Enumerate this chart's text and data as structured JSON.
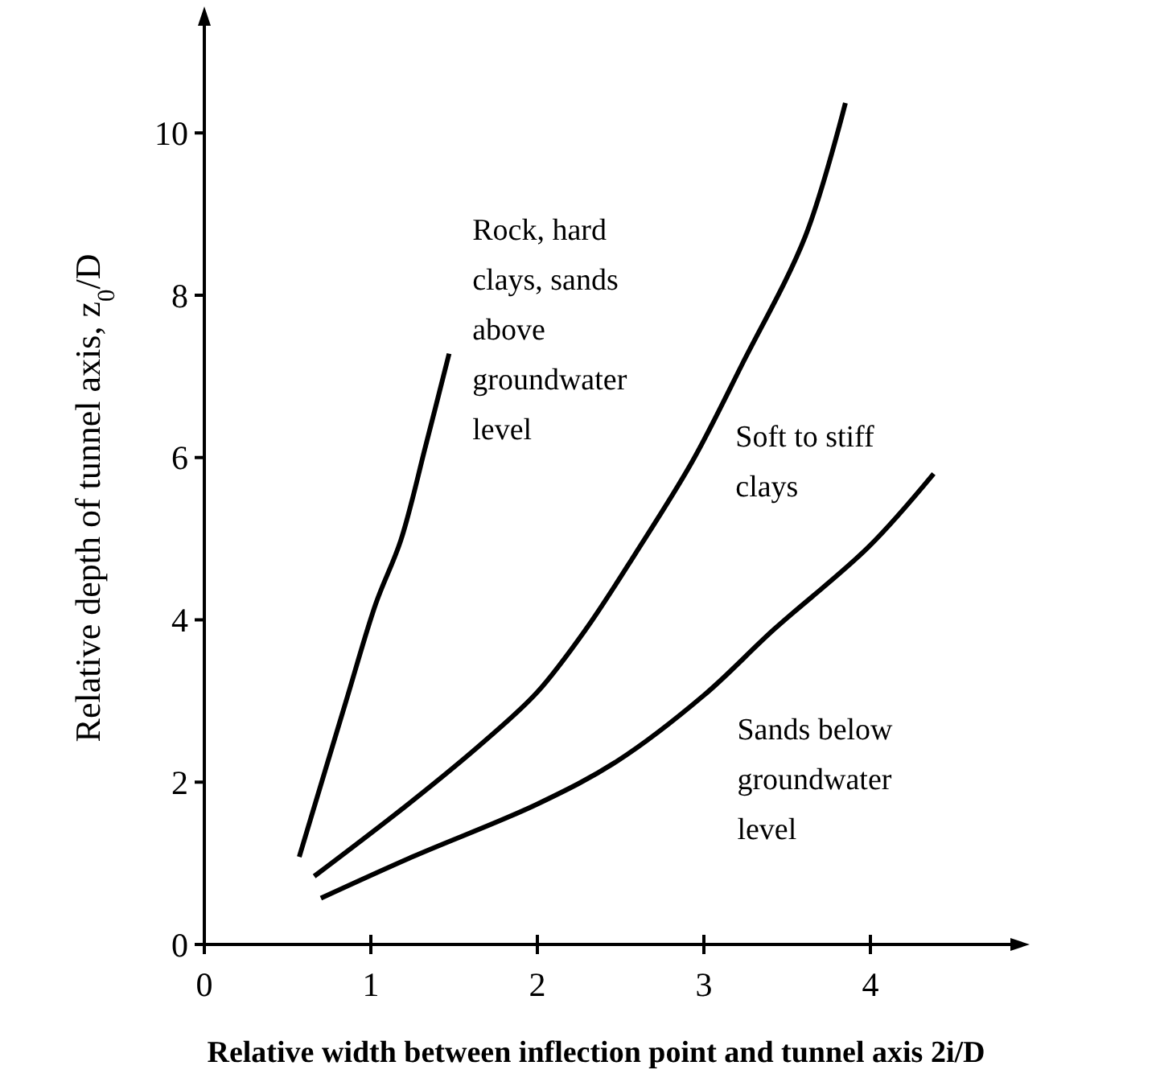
{
  "chart_data": {
    "type": "line",
    "xlabel": "Relative width between inflection point and tunnel axis 2i/D",
    "ylabel": "Relative depth of tunnel axis, z$_{0}$/D",
    "xlim": [
      0,
      4.86
    ],
    "ylim": [
      0,
      11.4
    ],
    "xticks": [
      0,
      1,
      2,
      3,
      4
    ],
    "yticks": [
      0,
      2,
      4,
      6,
      8,
      10
    ],
    "line_style": "solid",
    "series": [
      {
        "name": "Rock, hard clays, sands above groundwater level",
        "color": "#000000",
        "x": [
          0.57,
          0.85,
          1.03,
          1.18,
          1.33,
          1.47
        ],
        "values": [
          1.08,
          2.99,
          4.2,
          4.98,
          6.15,
          7.28
        ]
      },
      {
        "name": "Soft to stiff clays",
        "color": "#000000",
        "x": [
          0.66,
          1.25,
          1.68,
          2.0,
          2.29,
          2.59,
          2.93,
          3.23,
          3.61,
          3.85
        ],
        "values": [
          0.84,
          1.77,
          2.5,
          3.11,
          3.88,
          4.82,
          5.95,
          7.15,
          8.73,
          10.37
        ]
      },
      {
        "name": "Sands below groundwater level",
        "color": "#000000",
        "x": [
          0.7,
          1.25,
          2.0,
          2.48,
          3.0,
          3.42,
          3.99,
          4.38
        ],
        "values": [
          0.57,
          1.08,
          1.73,
          2.26,
          3.07,
          3.88,
          4.9,
          5.8
        ]
      }
    ]
  }
}
